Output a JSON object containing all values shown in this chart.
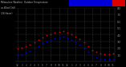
{
  "background_color": "#000000",
  "plot_bg_color": "#000000",
  "grid_color": "#333333",
  "grid_style": "--",
  "temp_color": "#cc0000",
  "chill_color": "#0000cc",
  "hours": [
    0,
    1,
    2,
    3,
    4,
    5,
    6,
    7,
    8,
    9,
    10,
    11,
    12,
    13,
    14,
    15,
    16,
    17,
    18,
    19,
    20,
    21,
    22,
    23
  ],
  "temp": [
    19,
    20,
    22,
    25,
    28,
    32,
    36,
    39,
    41,
    43,
    44,
    45,
    43,
    40,
    37,
    33,
    28,
    22,
    17,
    14,
    12,
    11,
    11,
    12
  ],
  "chill": [
    10,
    11,
    13,
    16,
    19,
    23,
    27,
    30,
    32,
    34,
    36,
    37,
    35,
    32,
    29,
    25,
    20,
    14,
    9,
    6,
    4,
    3,
    3,
    4
  ],
  "ylim": [
    0,
    80
  ],
  "ytick_values": [
    10,
    20,
    30,
    40,
    50,
    60,
    70,
    80
  ],
  "ytick_labels": [
    "10",
    "20",
    "30",
    "40",
    "50",
    "60",
    "70",
    "80"
  ],
  "xtick_positions": [
    0,
    1,
    2,
    3,
    4,
    5,
    6,
    7,
    8,
    9,
    10,
    11,
    12,
    13,
    14,
    15,
    16,
    17,
    18,
    19,
    20,
    21,
    22,
    23
  ],
  "xtick_labels": [
    "12",
    "1",
    "2",
    "3",
    "4",
    "5",
    "6",
    "7",
    "8",
    "9",
    "10",
    "11",
    "12",
    "1",
    "2",
    "3",
    "4",
    "5",
    "6",
    "7",
    "8",
    "9",
    "10",
    "11"
  ],
  "title_text": "Milwaukee Weather  Outdoor Temperature",
  "title_sub": "vs Wind Chill",
  "title_sub2": "(24 Hours)",
  "title_bar_blue": "#0000dd",
  "title_bar_red": "#dd0000",
  "ylabel_color": "#888888",
  "xlabel_color": "#888888",
  "spine_color": "#444444",
  "dot_size": 2.0
}
